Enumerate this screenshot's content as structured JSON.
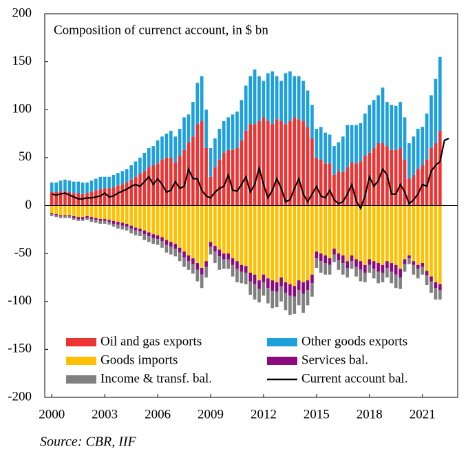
{
  "chart_data": {
    "type": "bar",
    "subtitle": "Composition of currenct account, in $ bn",
    "source": "Source: CBR, IIF",
    "x": [
      2000,
      2000.25,
      2000.5,
      2000.75,
      2001,
      2001.25,
      2001.5,
      2001.75,
      2002,
      2002.25,
      2002.5,
      2002.75,
      2003,
      2003.25,
      2003.5,
      2003.75,
      2004,
      2004.25,
      2004.5,
      2004.75,
      2005,
      2005.25,
      2005.5,
      2005.75,
      2006,
      2006.25,
      2006.5,
      2006.75,
      2007,
      2007.25,
      2007.5,
      2007.75,
      2008,
      2008.25,
      2008.5,
      2008.75,
      2009,
      2009.25,
      2009.5,
      2009.75,
      2010,
      2010.25,
      2010.5,
      2010.75,
      2011,
      2011.25,
      2011.5,
      2011.75,
      2012,
      2012.25,
      2012.5,
      2012.75,
      2013,
      2013.25,
      2013.5,
      2013.75,
      2014,
      2014.25,
      2014.5,
      2014.75,
      2015,
      2015.25,
      2015.5,
      2015.75,
      2016,
      2016.25,
      2016.5,
      2016.75,
      2017,
      2017.25,
      2017.5,
      2017.75,
      2018,
      2018.25,
      2018.5,
      2018.75,
      2019,
      2019.25,
      2019.5,
      2019.75,
      2020,
      2020.25,
      2020.5,
      2020.75,
      2021,
      2021.25,
      2021.5,
      2021.75,
      2022,
      2022.25,
      2022.5
    ],
    "series": [
      {
        "name": "Oil and gas exports",
        "color": "#ee3333",
        "kind": "bar",
        "values": [
          14,
          14,
          15,
          15,
          14,
          13,
          13,
          12,
          13,
          14,
          16,
          17,
          18,
          18,
          19,
          21,
          22,
          24,
          27,
          30,
          33,
          36,
          40,
          42,
          44,
          48,
          50,
          50,
          45,
          52,
          58,
          66,
          72,
          85,
          88,
          60,
          30,
          40,
          48,
          55,
          58,
          58,
          60,
          68,
          78,
          85,
          85,
          88,
          92,
          88,
          85,
          90,
          88,
          85,
          88,
          92,
          90,
          88,
          82,
          70,
          50,
          48,
          44,
          44,
          32,
          36,
          35,
          40,
          45,
          44,
          46,
          52,
          55,
          60,
          65,
          65,
          62,
          58,
          58,
          60,
          48,
          28,
          32,
          38,
          42,
          48,
          60,
          65,
          78,
          null,
          null
        ]
      },
      {
        "name": "Other goods exports",
        "color": "#1ea0dc",
        "kind": "bar",
        "values": [
          10,
          10,
          11,
          12,
          12,
          12,
          12,
          12,
          11,
          12,
          12,
          13,
          12,
          12,
          13,
          13,
          14,
          14,
          15,
          16,
          17,
          19,
          20,
          20,
          24,
          24,
          25,
          28,
          27,
          28,
          34,
          29,
          36,
          43,
          47,
          40,
          30,
          30,
          32,
          33,
          34,
          37,
          38,
          42,
          47,
          50,
          57,
          47,
          38,
          50,
          55,
          45,
          42,
          53,
          52,
          43,
          45,
          42,
          38,
          35,
          30,
          34,
          32,
          30,
          30,
          30,
          37,
          44,
          39,
          40,
          40,
          44,
          50,
          50,
          50,
          58,
          46,
          47,
          46,
          48,
          44,
          37,
          40,
          42,
          40,
          48,
          55,
          67,
          77,
          null,
          null
        ]
      },
      {
        "name": "Goods imports",
        "color": "#ffc000",
        "kind": "bar",
        "values": [
          -8,
          -9,
          -10,
          -10,
          -10,
          -11,
          -12,
          -12,
          -11,
          -12,
          -13,
          -14,
          -14,
          -15,
          -16,
          -17,
          -18,
          -19,
          -21,
          -23,
          -24,
          -26,
          -28,
          -30,
          -31,
          -33,
          -36,
          -38,
          -40,
          -44,
          -48,
          -52,
          -55,
          -60,
          -65,
          -58,
          -38,
          -42,
          -46,
          -50,
          -50,
          -55,
          -58,
          -62,
          -63,
          -70,
          -72,
          -78,
          -72,
          -76,
          -78,
          -80,
          -75,
          -80,
          -82,
          -84,
          -78,
          -80,
          -78,
          -72,
          -48,
          -50,
          -52,
          -55,
          -45,
          -50,
          -52,
          -58,
          -52,
          -56,
          -58,
          -62,
          -56,
          -58,
          -60,
          -62,
          -58,
          -60,
          -62,
          -66,
          -56,
          -52,
          -58,
          -62,
          -60,
          -68,
          -74,
          -80,
          -82,
          null,
          null
        ]
      },
      {
        "name": "Services bal.",
        "color": "#8b0a7e",
        "kind": "bar",
        "values": [
          -1,
          -1,
          -1,
          -1,
          -1,
          -2,
          -2,
          -2,
          -2,
          -2,
          -2,
          -2,
          -2,
          -2,
          -3,
          -3,
          -3,
          -3,
          -3,
          -3,
          -3,
          -4,
          -4,
          -4,
          -4,
          -4,
          -5,
          -5,
          -5,
          -5,
          -6,
          -6,
          -6,
          -7,
          -7,
          -6,
          -5,
          -6,
          -7,
          -6,
          -6,
          -7,
          -8,
          -7,
          -7,
          -9,
          -10,
          -9,
          -8,
          -10,
          -11,
          -10,
          -9,
          -11,
          -12,
          -11,
          -10,
          -12,
          -10,
          -9,
          -7,
          -8,
          -8,
          -7,
          -6,
          -7,
          -8,
          -7,
          -6,
          -8,
          -9,
          -8,
          -6,
          -8,
          -9,
          -8,
          -7,
          -9,
          -10,
          -9,
          -5,
          -3,
          -4,
          -4,
          -4,
          -5,
          -5,
          -6,
          -6,
          null,
          null
        ]
      },
      {
        "name": "Income & transf. bal.",
        "color": "#808080",
        "kind": "bar",
        "values": [
          -2,
          -2,
          -2,
          -2,
          -2,
          -2,
          -2,
          -2,
          -2,
          -3,
          -3,
          -3,
          -3,
          -3,
          -3,
          -4,
          -4,
          -4,
          -5,
          -5,
          -5,
          -6,
          -6,
          -6,
          -6,
          -7,
          -8,
          -8,
          -8,
          -9,
          -10,
          -9,
          -10,
          -12,
          -14,
          -11,
          -8,
          -12,
          -14,
          -10,
          -10,
          -12,
          -14,
          -12,
          -12,
          -14,
          -16,
          -14,
          -14,
          -16,
          -18,
          -16,
          -16,
          -18,
          -20,
          -18,
          -16,
          -20,
          -16,
          -14,
          -10,
          -12,
          -12,
          -10,
          -8,
          -10,
          -12,
          -10,
          -8,
          -10,
          -12,
          -10,
          -8,
          -10,
          -12,
          -10,
          -10,
          -12,
          -14,
          -12,
          -8,
          -6,
          -10,
          -10,
          -8,
          -10,
          -12,
          -12,
          -10,
          null,
          null
        ]
      },
      {
        "name": "Current account bal.",
        "color": "#000000",
        "kind": "line",
        "values": [
          12,
          11,
          12,
          13,
          11,
          9,
          7,
          7,
          8,
          8,
          9,
          10,
          13,
          9,
          10,
          13,
          15,
          17,
          20,
          22,
          20,
          25,
          30,
          22,
          28,
          22,
          14,
          16,
          25,
          18,
          20,
          38,
          28,
          28,
          16,
          10,
          8,
          14,
          18,
          20,
          32,
          16,
          15,
          22,
          30,
          14,
          22,
          39,
          22,
          8,
          16,
          28,
          18,
          4,
          6,
          18,
          28,
          12,
          4,
          12,
          20,
          10,
          8,
          16,
          6,
          2,
          4,
          12,
          22,
          5,
          -3,
          10,
          30,
          20,
          26,
          38,
          32,
          12,
          12,
          22,
          14,
          2,
          6,
          12,
          22,
          20,
          36,
          42,
          46,
          68,
          70
        ]
      }
    ],
    "xlim": [
      1999.6,
      2023
    ],
    "xticks": [
      2000,
      2003,
      2006,
      2009,
      2012,
      2015,
      2018,
      2021
    ],
    "ylim": [
      -200,
      200
    ],
    "yticks": [
      -200,
      -150,
      -100,
      -50,
      0,
      50,
      100,
      150,
      200
    ]
  }
}
